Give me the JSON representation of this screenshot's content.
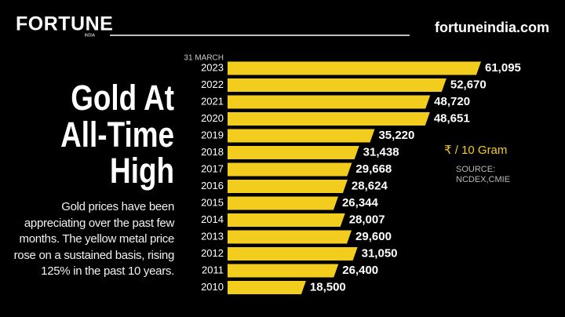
{
  "header": {
    "brand": "FORTUNE",
    "brand_sub": "INDIA",
    "site": "fortuneindia.com"
  },
  "chart_data": {
    "type": "bar",
    "orientation": "horizontal",
    "title": [
      "Gold At",
      "All-Time",
      "High"
    ],
    "description": "Gold prices have been appreciating over the past few months. The yellow metal price rose on a sustained basis, rising 125% in the past 10 years.",
    "category_note": "31 MARCH",
    "unit_note": "₹ / 10 Gram",
    "source": "SOURCE: NCDEX,CMIE",
    "color": "#f2cd1e",
    "categories": [
      "2023",
      "2022",
      "2021",
      "2020",
      "2019",
      "2018",
      "2017",
      "2016",
      "2015",
      "2014",
      "2013",
      "2012",
      "2011",
      "2010"
    ],
    "values": [
      61095,
      52670,
      48720,
      48651,
      35220,
      31438,
      29668,
      28624,
      26344,
      28007,
      29600,
      31050,
      26400,
      18500
    ],
    "value_labels": [
      "61,095",
      "52,670",
      "48,720",
      "48,651",
      "35,220",
      "31,438",
      "29,668",
      "28,624",
      "26,344",
      "28,007",
      "29,600",
      "31,050",
      "26,400",
      "18,500"
    ]
  }
}
